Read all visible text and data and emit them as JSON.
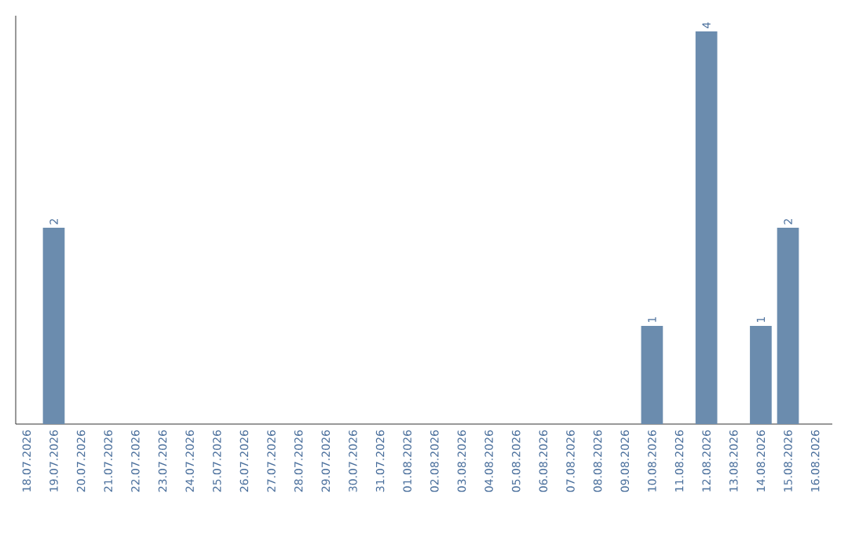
{
  "chart_data": {
    "type": "bar",
    "categories": [
      "18.07.2026",
      "19.07.2026",
      "20.07.2026",
      "21.07.2026",
      "22.07.2026",
      "23.07.2026",
      "24.07.2026",
      "25.07.2026",
      "26.07.2026",
      "27.07.2026",
      "28.07.2026",
      "29.07.2026",
      "30.07.2026",
      "31.07.2026",
      "01.08.2026",
      "02.08.2026",
      "03.08.2026",
      "04.08.2026",
      "05.08.2026",
      "06.08.2026",
      "07.08.2026",
      "08.08.2026",
      "09.08.2026",
      "10.08.2026",
      "11.08.2026",
      "12.08.2026",
      "13.08.2026",
      "14.08.2026",
      "15.08.2026",
      "16.08.2026"
    ],
    "values": [
      0,
      2,
      0,
      0,
      0,
      0,
      0,
      0,
      0,
      0,
      0,
      0,
      0,
      0,
      0,
      0,
      0,
      0,
      0,
      0,
      0,
      0,
      0,
      1,
      0,
      4,
      0,
      1,
      2,
      0
    ],
    "value_labels": [
      null,
      "2",
      null,
      null,
      null,
      null,
      null,
      null,
      null,
      null,
      null,
      null,
      null,
      null,
      null,
      null,
      null,
      null,
      null,
      null,
      null,
      null,
      null,
      "1",
      null,
      "4",
      null,
      "1",
      "2",
      null
    ],
    "color": "#6b8cae",
    "ylim": [
      0,
      4.16
    ],
    "tick_labels": "x"
  }
}
